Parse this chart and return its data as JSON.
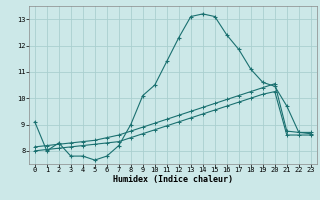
{
  "xlabel": "Humidex (Indice chaleur)",
  "bg_color": "#cce8e8",
  "line_color": "#1a7070",
  "grid_color": "#aacfcf",
  "xlim": [
    -0.5,
    23.5
  ],
  "ylim": [
    7.5,
    13.5
  ],
  "xticks": [
    0,
    1,
    2,
    3,
    4,
    5,
    6,
    7,
    8,
    9,
    10,
    11,
    12,
    13,
    14,
    15,
    16,
    17,
    18,
    19,
    20,
    21,
    22,
    23
  ],
  "yticks": [
    8,
    9,
    10,
    11,
    12,
    13
  ],
  "line1_x": [
    0,
    1,
    2,
    3,
    4,
    5,
    6,
    7,
    8,
    9,
    10,
    11,
    12,
    13,
    14,
    15,
    16,
    17,
    18,
    19,
    20,
    21,
    22,
    23
  ],
  "line1_y": [
    9.1,
    8.0,
    8.3,
    7.8,
    7.8,
    7.65,
    7.8,
    8.2,
    9.0,
    10.1,
    10.5,
    11.4,
    12.3,
    13.1,
    13.2,
    13.1,
    12.4,
    11.85,
    11.1,
    10.6,
    10.45,
    9.7,
    8.7,
    8.65
  ],
  "line2_x": [
    0,
    1,
    2,
    3,
    4,
    5,
    6,
    7,
    8,
    9,
    10,
    11,
    12,
    13,
    14,
    15,
    16,
    17,
    18,
    19,
    20,
    21,
    22,
    23
  ],
  "line2_y": [
    8.0,
    8.05,
    8.1,
    8.15,
    8.2,
    8.25,
    8.3,
    8.35,
    8.5,
    8.65,
    8.8,
    8.95,
    9.1,
    9.25,
    9.4,
    9.55,
    9.7,
    9.85,
    10.0,
    10.15,
    10.25,
    8.6,
    8.6,
    8.6
  ],
  "line3_x": [
    0,
    1,
    2,
    3,
    4,
    5,
    6,
    7,
    8,
    9,
    10,
    11,
    12,
    13,
    14,
    15,
    16,
    17,
    18,
    19,
    20,
    21,
    22,
    23
  ],
  "line3_y": [
    8.15,
    8.2,
    8.25,
    8.3,
    8.35,
    8.4,
    8.5,
    8.6,
    8.75,
    8.9,
    9.05,
    9.2,
    9.35,
    9.5,
    9.65,
    9.8,
    9.95,
    10.1,
    10.25,
    10.4,
    10.55,
    8.75,
    8.7,
    8.7
  ]
}
